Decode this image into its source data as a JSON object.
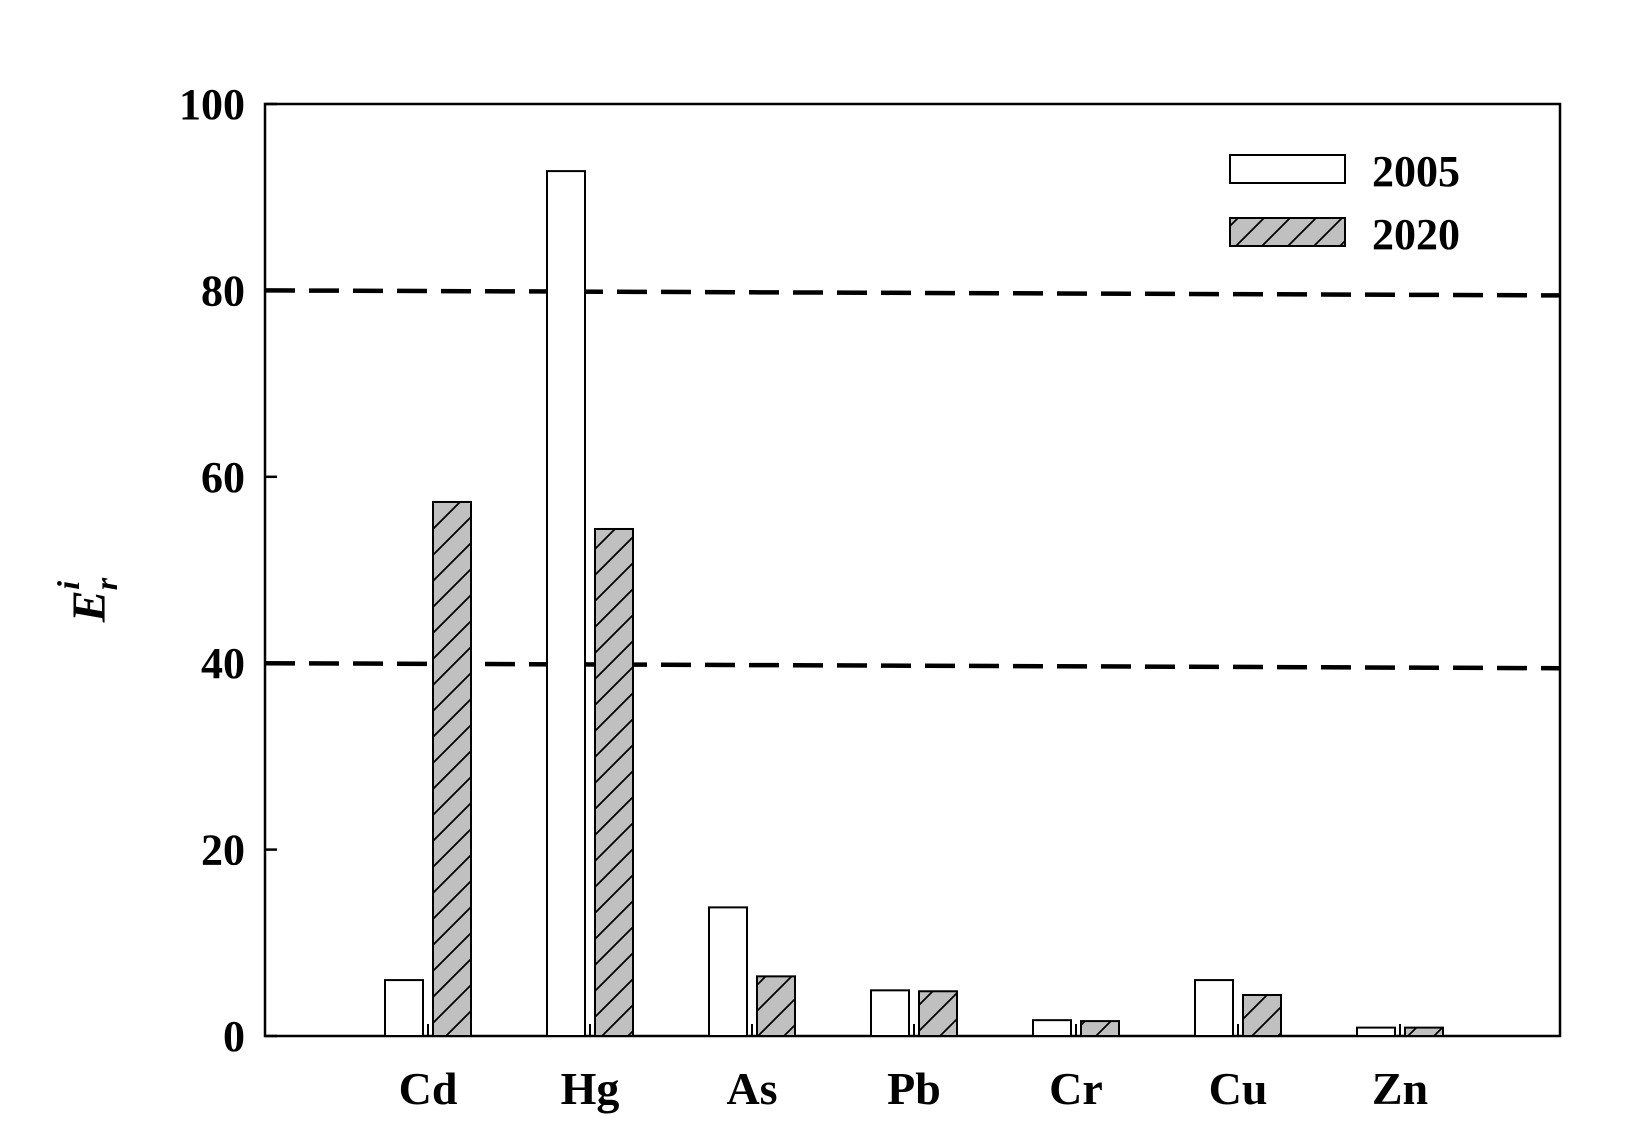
{
  "chart_data": {
    "type": "bar",
    "categories": [
      "Cd",
      "Hg",
      "As",
      "Pb",
      "Cr",
      "Cu",
      "Zn"
    ],
    "series": [
      {
        "name": "2005",
        "values": [
          6.0,
          92.8,
          13.8,
          4.9,
          1.7,
          6.0,
          0.9
        ],
        "color": "#ffffff",
        "pattern": "none"
      },
      {
        "name": "2020",
        "values": [
          57.3,
          54.4,
          6.4,
          4.8,
          1.6,
          4.4,
          0.9
        ],
        "color": "#c0c0c0",
        "pattern": "hatch"
      }
    ],
    "ylabel": {
      "base": "E",
      "sub": "r",
      "sup": "i"
    },
    "ylim": [
      0,
      100
    ],
    "yticks": [
      "0",
      "20",
      "40",
      "60",
      "80",
      "100"
    ],
    "reference_lines": [
      80,
      40
    ],
    "reference_line_style": "dashed",
    "grid": false,
    "legend_position": "top-right"
  }
}
